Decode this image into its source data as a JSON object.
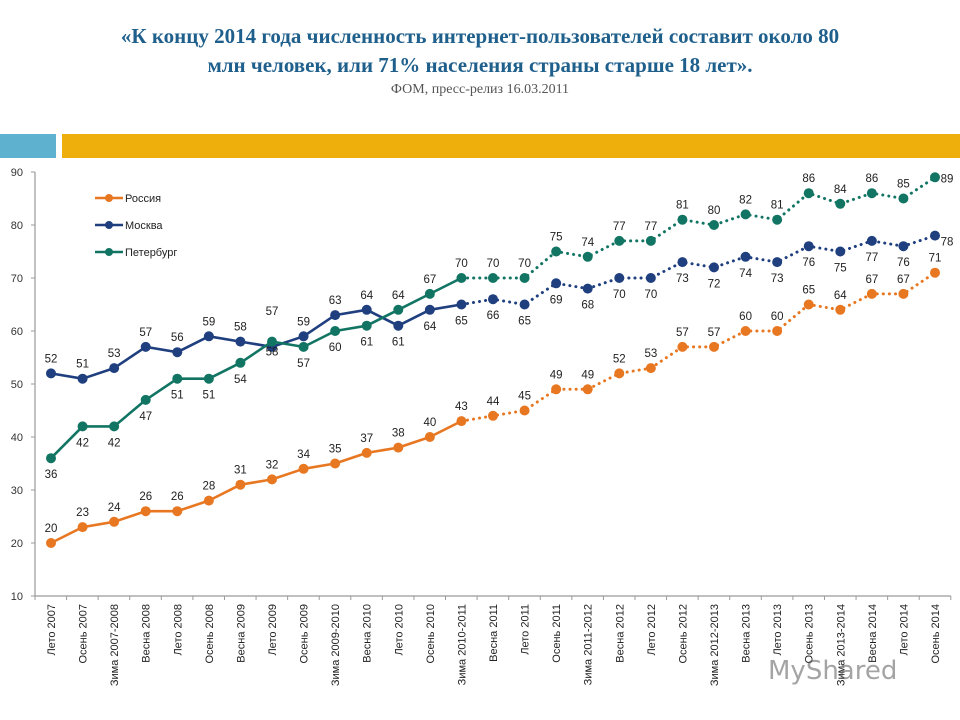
{
  "header": {
    "title_line1": "«К концу 2014 года численность интернет-пользователей составит около 80",
    "title_line2": "млн человек, или 71% населения страны старше 18 лет».",
    "subtitle": "ФОМ, пресс-релиз 16.03.2011"
  },
  "watermark": "MyShared",
  "chart_data": {
    "type": "line",
    "title": "",
    "xlabel": "",
    "ylabel": "",
    "ylim": [
      10,
      90
    ],
    "yticks": [
      10,
      20,
      30,
      40,
      50,
      60,
      70,
      80,
      90
    ],
    "grid": false,
    "legend": "top-left",
    "categories": [
      "Лето 2007",
      "Осень 2007",
      "Зима 2007-2008",
      "Весна 2008",
      "Лето 2008",
      "Осень 2008",
      "Весна 2009",
      "Лето 2009",
      "Осень 2009",
      "Зима 2009-2010",
      "Весна 2010",
      "Лето 2010",
      "Осень 2010",
      "Зима 2010-2011",
      "Весна 2011",
      "Лето 2011",
      "Осень 2011",
      "Зима 2011-2012",
      "Весна 2012",
      "Лето 2012",
      "Осень 2012",
      "Зима 2012-2013",
      "Весна 2013",
      "Лето 2013",
      "Осень 2013",
      "Зима 2013-2014",
      "Весна 2014",
      "Лето 2014",
      "Осень 2014"
    ],
    "actual_until_category": "Зима 2010-2011",
    "forecast_style": "dotted",
    "series": [
      {
        "name": "Россия",
        "color": "#e87722",
        "values": [
          20,
          23,
          24,
          26,
          26,
          28,
          31,
          32,
          34,
          35,
          37,
          38,
          40,
          43,
          44,
          45,
          49,
          49,
          52,
          53,
          57,
          57,
          60,
          60,
          65,
          64,
          67,
          67,
          71
        ],
        "label_pos": "above"
      },
      {
        "name": "Москва",
        "color": "#1f3f7f",
        "values": [
          52,
          51,
          53,
          57,
          56,
          59,
          58,
          57,
          59,
          63,
          64,
          61,
          64,
          65,
          66,
          65,
          69,
          68,
          70,
          70,
          73,
          72,
          74,
          73,
          76,
          75,
          77,
          76,
          78
        ],
        "label_pos": "mixed"
      },
      {
        "name": "Петербург",
        "color": "#127564",
        "values": [
          36,
          42,
          42,
          47,
          51,
          51,
          54,
          58,
          57,
          60,
          61,
          64,
          67,
          70,
          70,
          70,
          75,
          74,
          77,
          77,
          81,
          80,
          82,
          81,
          86,
          84,
          86,
          85,
          89
        ],
        "label_pos": "mixed"
      }
    ]
  }
}
